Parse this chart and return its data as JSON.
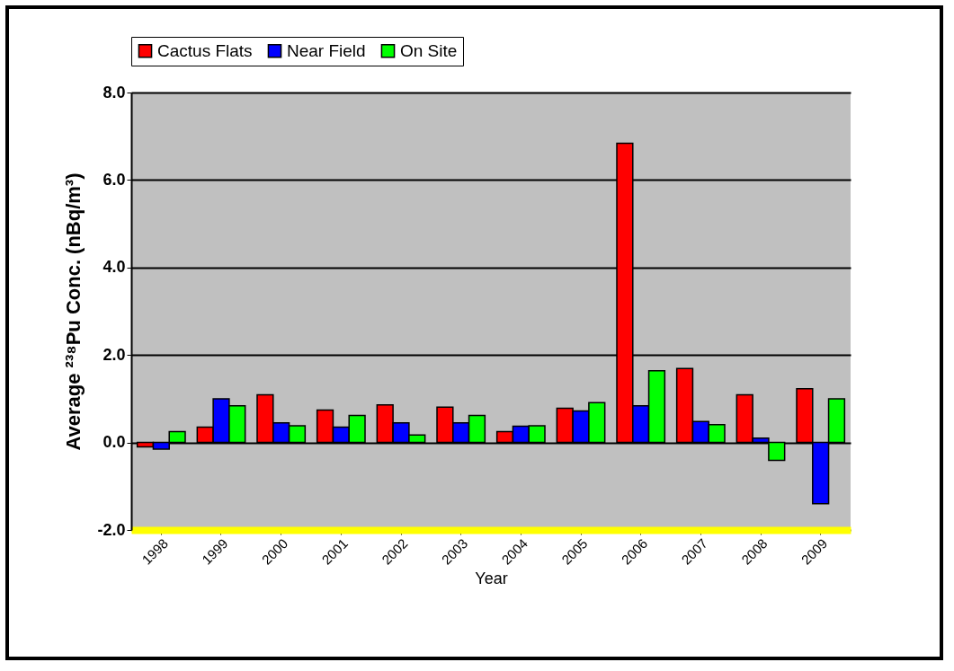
{
  "chart_data": {
    "type": "bar",
    "xlabel": "Year",
    "ylabel": "Average ²³⁸Pu Conc. (nBq/m³)",
    "categories": [
      "1998",
      "1999",
      "2000",
      "2001",
      "2002",
      "2003",
      "2004",
      "2005",
      "2006",
      "2007",
      "2008",
      "2009"
    ],
    "series": [
      {
        "name": "Cactus Flats",
        "color": "#ff0000",
        "values": [
          -0.1,
          0.35,
          1.09,
          0.74,
          0.86,
          0.81,
          0.25,
          0.78,
          6.84,
          1.69,
          1.09,
          1.23
        ]
      },
      {
        "name": "Near Field",
        "color": "#0000ff",
        "values": [
          -0.15,
          1.0,
          0.45,
          0.35,
          0.45,
          0.45,
          0.37,
          0.72,
          0.84,
          0.48,
          0.1,
          -1.4
        ]
      },
      {
        "name": "On Site",
        "color": "#00ff00",
        "values": [
          0.25,
          0.84,
          0.38,
          0.62,
          0.17,
          0.62,
          0.38,
          0.91,
          1.64,
          0.41,
          -0.41,
          1.0
        ]
      }
    ],
    "ylim": [
      -2,
      8
    ],
    "yticks": [
      {
        "value": -2,
        "label": "-2.0"
      },
      {
        "value": 0,
        "label": "0.0"
      },
      {
        "value": 2,
        "label": "2.0"
      },
      {
        "value": 4,
        "label": "4.0"
      },
      {
        "value": 6,
        "label": "6.0"
      },
      {
        "value": 8,
        "label": "8.0"
      }
    ],
    "grid": "y",
    "legend": "top"
  }
}
